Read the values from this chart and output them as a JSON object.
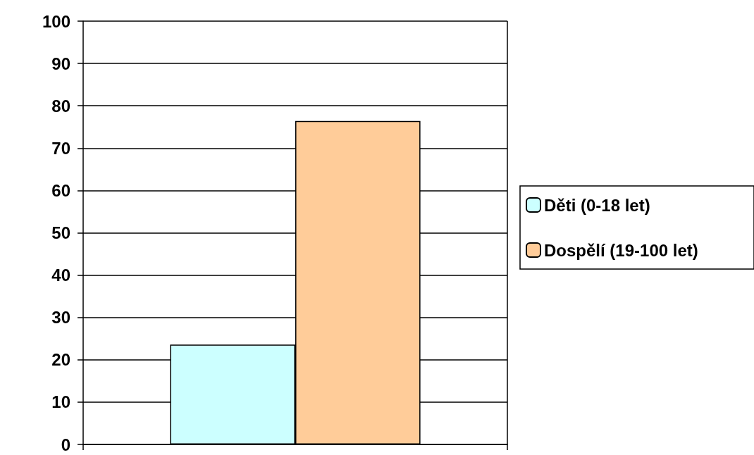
{
  "chart_data": {
    "type": "bar",
    "categories": [
      null
    ],
    "series": [
      {
        "name": "Děti (0-18 let)",
        "color": "#ccffff",
        "values": [
          23.6
        ]
      },
      {
        "name": "Dospělí (19-100 let)",
        "color": "#ffcc99",
        "values": [
          76.4
        ]
      }
    ],
    "ylim": [
      0,
      100
    ],
    "yticks": [
      0,
      10,
      20,
      30,
      40,
      50,
      60,
      70,
      80,
      90,
      100
    ],
    "grid": "y",
    "legend": "right"
  }
}
